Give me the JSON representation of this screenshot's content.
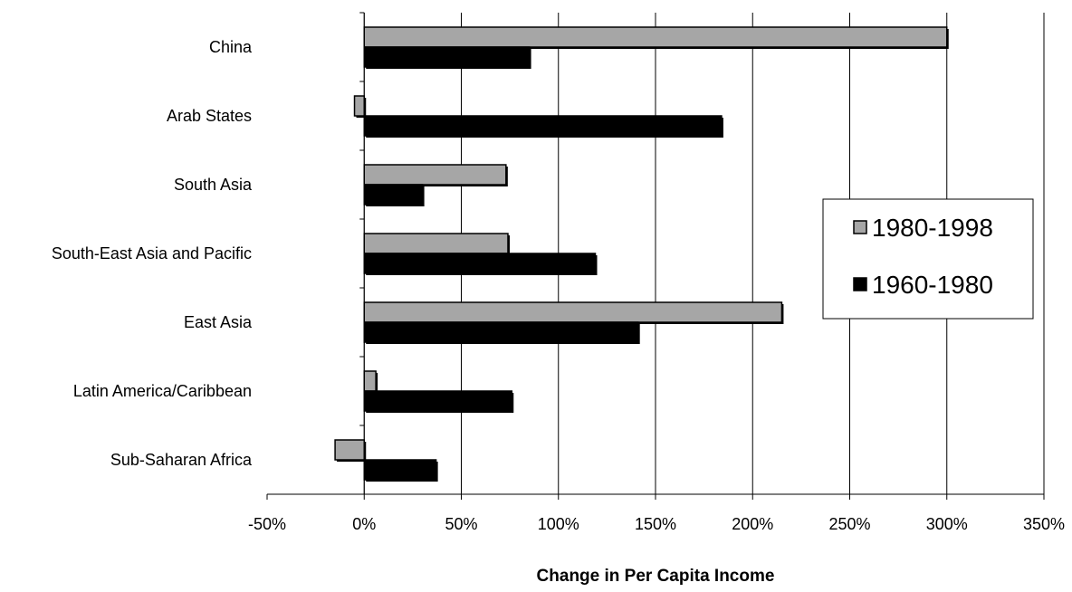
{
  "chart_data": {
    "type": "bar",
    "orientation": "horizontal",
    "categories": [
      "China",
      "Arab States",
      "South Asia",
      "South-East Asia and Pacific",
      "East Asia",
      "Latin America/Caribbean",
      "Sub-Saharan Africa"
    ],
    "series": [
      {
        "name": "1980-1998",
        "values": [
          300,
          -5,
          73,
          74,
          215,
          6,
          -15
        ],
        "color": "#a6a6a6"
      },
      {
        "name": "1960-1980",
        "values": [
          85,
          184,
          30,
          119,
          141,
          76,
          37
        ],
        "color": "#000000"
      }
    ],
    "xlabel": "Change in Per Capita Income",
    "xlim": [
      -50,
      350
    ],
    "xticks": [
      -50,
      0,
      50,
      100,
      150,
      200,
      250,
      300,
      350
    ],
    "xtick_labels": [
      "-50%",
      "0%",
      "50%",
      "100%",
      "150%",
      "200%",
      "250%",
      "300%",
      "350%"
    ],
    "grid": "vertical",
    "legend_position": "right"
  }
}
